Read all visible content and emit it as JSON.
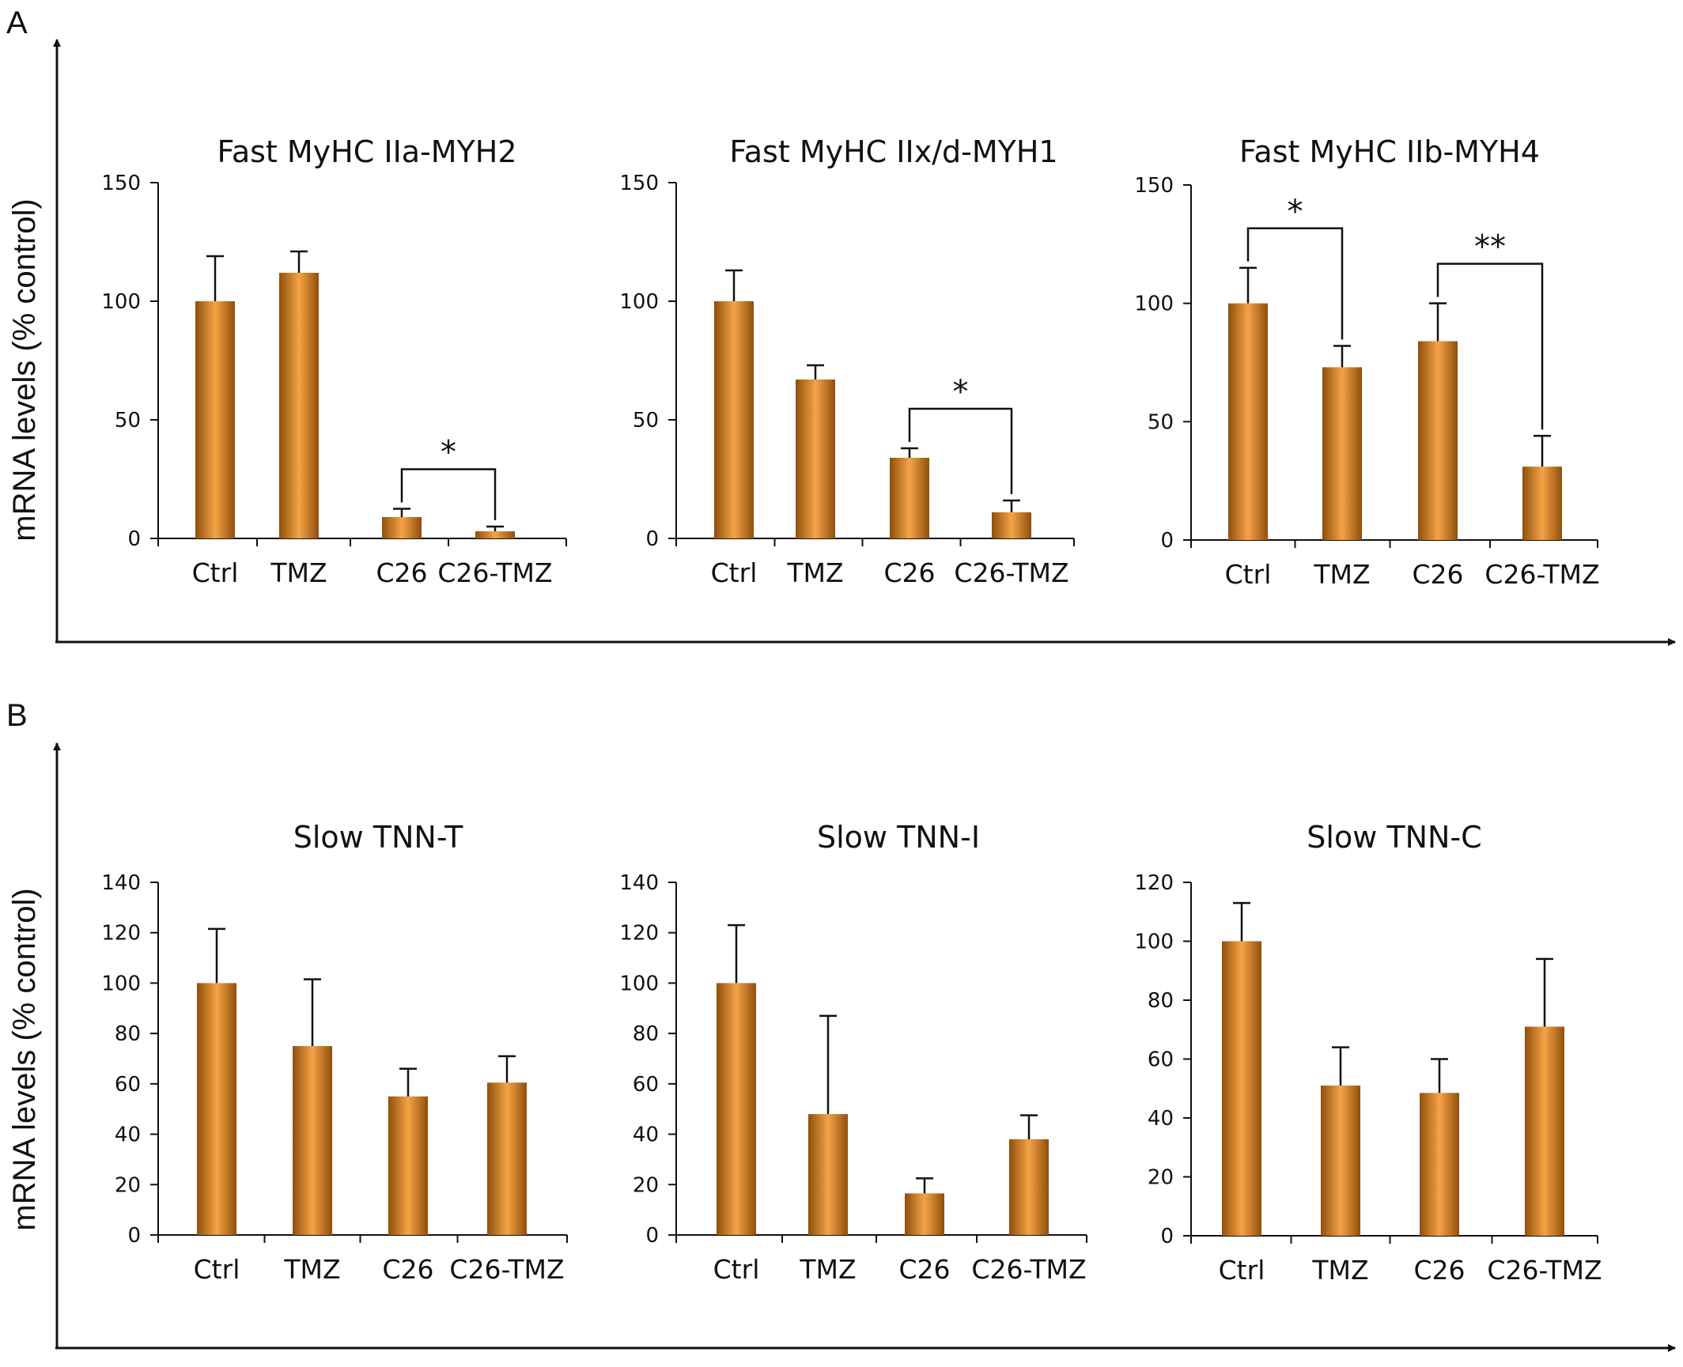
{
  "figure": {
    "panels": [
      {
        "letter": "A",
        "ylabel": "mRNA levels (% control)"
      },
      {
        "letter": "B",
        "ylabel": "mRNA levels (% control)"
      }
    ],
    "colors": {
      "bar_center": "#f5a346",
      "bar_edge": "#8f4f0c",
      "axis": "#111111"
    }
  },
  "chart_data": [
    {
      "type": "bar",
      "title": "Fast MyHC IIa-MYH2",
      "xlabel": "",
      "ylabel": "mRNA levels (% control)",
      "categories": [
        "Ctrl",
        "TMZ",
        "C26",
        "C26-TMZ"
      ],
      "values": [
        100,
        112,
        9,
        3
      ],
      "errors": [
        19,
        9,
        3.5,
        2
      ],
      "ylim": [
        0,
        150
      ],
      "yticks": [
        0,
        50,
        100,
        150
      ],
      "significance": [
        {
          "from": 2,
          "to": 3,
          "label": "*"
        }
      ]
    },
    {
      "type": "bar",
      "title": "Fast MyHC IIx/d-MYH1",
      "xlabel": "",
      "ylabel": "mRNA levels (% control)",
      "categories": [
        "Ctrl",
        "TMZ",
        "C26",
        "C26-TMZ"
      ],
      "values": [
        100,
        67,
        34,
        11
      ],
      "errors": [
        13,
        6,
        4,
        5
      ],
      "ylim": [
        0,
        150
      ],
      "yticks": [
        0,
        50,
        100,
        150
      ],
      "significance": [
        {
          "from": 2,
          "to": 3,
          "label": "*"
        }
      ]
    },
    {
      "type": "bar",
      "title": "Fast MyHC IIb-MYH4",
      "xlabel": "",
      "ylabel": "mRNA levels (% control)",
      "categories": [
        "Ctrl",
        "TMZ",
        "C26",
        "C26-TMZ"
      ],
      "values": [
        100,
        73,
        84,
        31
      ],
      "errors": [
        15,
        9,
        16,
        13
      ],
      "ylim": [
        0,
        150
      ],
      "yticks": [
        0,
        50,
        100,
        150
      ],
      "significance": [
        {
          "from": 0,
          "to": 1,
          "label": "*"
        },
        {
          "from": 2,
          "to": 3,
          "label": "**"
        }
      ]
    },
    {
      "type": "bar",
      "title": "Slow TNN-T",
      "xlabel": "",
      "ylabel": "mRNA levels (% control)",
      "categories": [
        "Ctrl",
        "TMZ",
        "C26",
        "C26-TMZ"
      ],
      "values": [
        100,
        75,
        55,
        60.5
      ],
      "errors": [
        21.5,
        26.5,
        11,
        10.5
      ],
      "ylim": [
        0,
        140
      ],
      "yticks": [
        0,
        20,
        40,
        60,
        80,
        100,
        120,
        140
      ],
      "significance": []
    },
    {
      "type": "bar",
      "title": "Slow TNN-I",
      "xlabel": "",
      "ylabel": "mRNA levels (% control)",
      "categories": [
        "Ctrl",
        "TMZ",
        "C26",
        "C26-TMZ"
      ],
      "values": [
        100,
        48,
        16.5,
        38
      ],
      "errors": [
        23,
        39,
        6,
        9.5
      ],
      "ylim": [
        0,
        140
      ],
      "yticks": [
        0,
        20,
        40,
        60,
        80,
        100,
        120,
        140
      ],
      "significance": []
    },
    {
      "type": "bar",
      "title": "Slow TNN-C",
      "xlabel": "",
      "ylabel": "mRNA levels (% control)",
      "categories": [
        "Ctrl",
        "TMZ",
        "C26",
        "C26-TMZ"
      ],
      "values": [
        100,
        51,
        48.5,
        71
      ],
      "errors": [
        13,
        13,
        11.5,
        23
      ],
      "ylim": [
        0,
        120
      ],
      "yticks": [
        0,
        20,
        40,
        60,
        80,
        100,
        120
      ],
      "significance": []
    }
  ]
}
